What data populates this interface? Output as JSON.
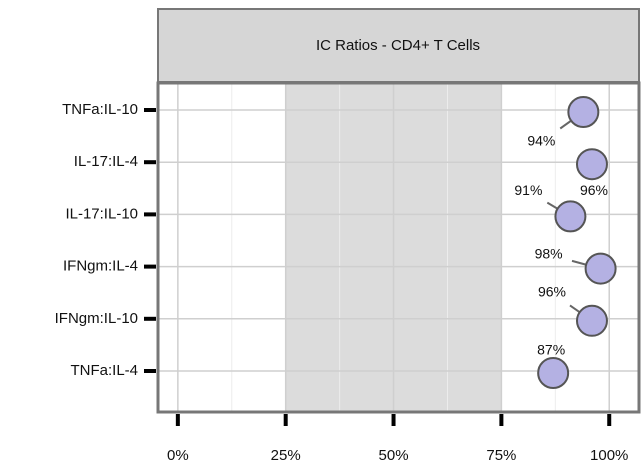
{
  "chart_data": {
    "type": "dot",
    "title": "IC Ratios - CD4+ T Cells",
    "categories": [
      "TNFa:IL-10",
      "IL-17:IL-4",
      "IL-17:IL-10",
      "IFNgm:IL-4",
      "IFNgm:IL-10",
      "TNFa:IL-4"
    ],
    "values": [
      94,
      96,
      91,
      98,
      96,
      87
    ],
    "value_labels": [
      "94%",
      "96%",
      "91%",
      "98%",
      "96%",
      "87%"
    ],
    "color": "#b4b1e3",
    "xlim": [
      -4.6,
      106.9
    ],
    "xticks": [
      {
        "value": 0,
        "label": "0%"
      },
      {
        "value": 25,
        "label": "25%"
      },
      {
        "value": 50,
        "label": "50%"
      },
      {
        "value": 75,
        "label": "75%"
      },
      {
        "value": 100,
        "label": "100%"
      }
    ],
    "x_minor_ticks": [
      12.5,
      37.5,
      62.5,
      87.5
    ],
    "highlight_range": [
      25,
      75
    ],
    "grid": true
  }
}
